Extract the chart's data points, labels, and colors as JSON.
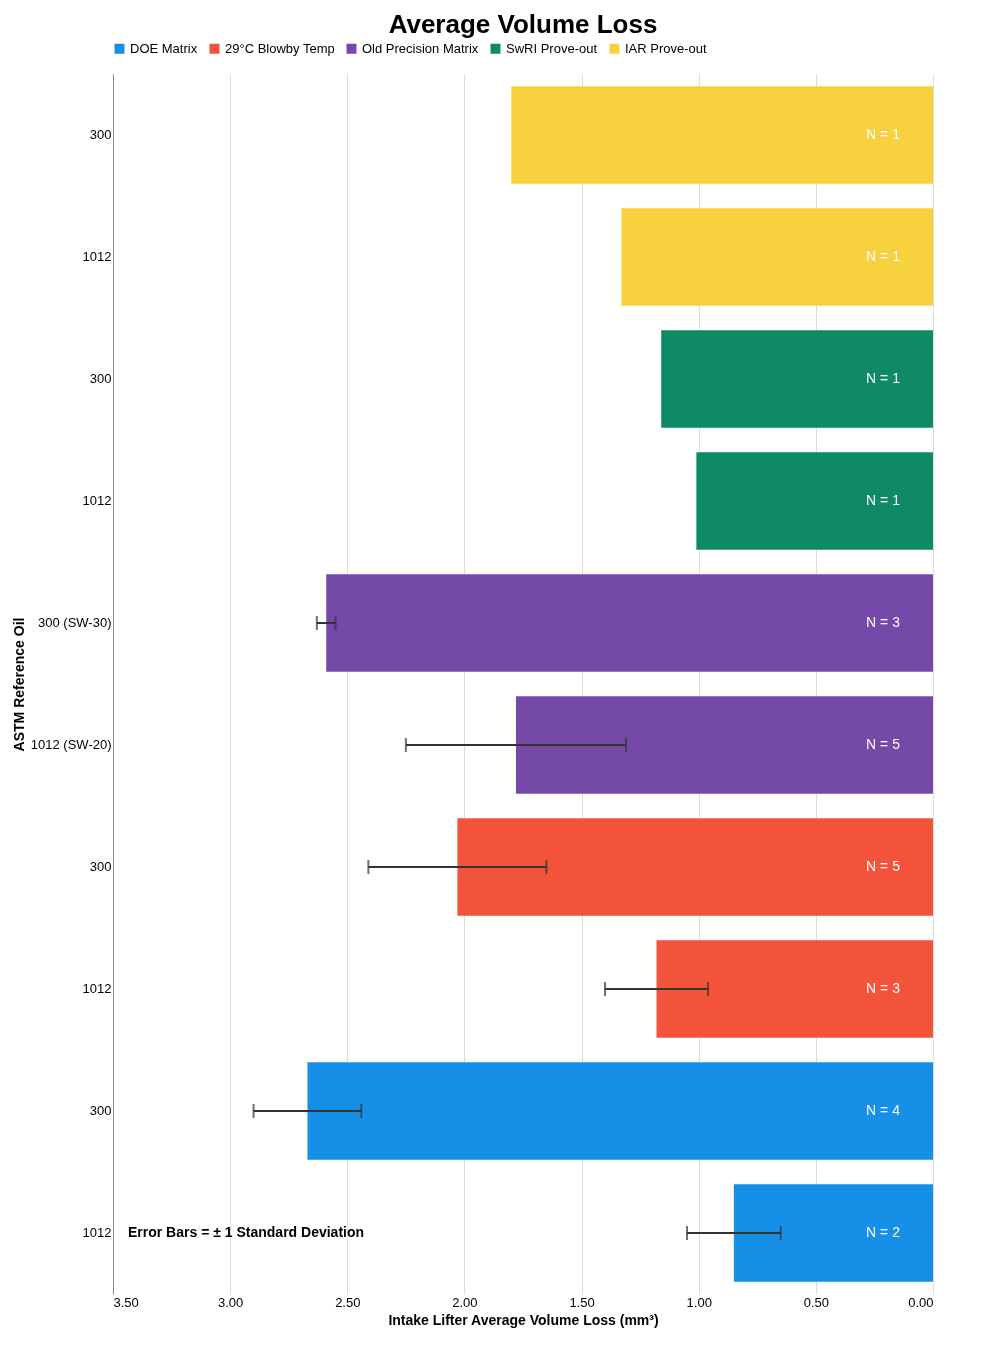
{
  "chart_data": {
    "type": "bar",
    "orientation": "horizontal",
    "title": "Average Volume Loss",
    "xlabel": "Intake Lifter Average Volume Loss (mm³)",
    "ylabel": "ASTM Reference Oil",
    "annotations": [
      "Error Bars = ± 1 Standard Deviation",
      "N = 1",
      "N = 1",
      "N = 1",
      "N = 1",
      "N = 3",
      "N = 5",
      "N = 5",
      "N = 3",
      "N = 4",
      "N = 2"
    ],
    "categories": [
      "300",
      "1012",
      "300",
      "1012",
      "300 (SW-30)",
      "1012 (SW-20)",
      "300",
      "1012",
      "300",
      "1012"
    ],
    "series": [
      {
        "name": "DOE Matrix",
        "color": "#1590e6",
        "values": [
          null,
          null,
          null,
          null,
          null,
          null,
          null,
          null,
          2.67,
          0.85
        ],
        "errors": [
          null,
          null,
          null,
          null,
          null,
          null,
          null,
          null,
          0.23,
          0.2
        ]
      },
      {
        "name": "29°C Blowby Temp",
        "color": "#f2533a",
        "values": [
          null,
          null,
          null,
          null,
          null,
          null,
          2.03,
          1.18,
          null,
          null
        ],
        "errors": [
          null,
          null,
          null,
          null,
          null,
          null,
          0.38,
          0.22,
          null,
          null
        ]
      },
      {
        "name": "Old Precision Matrix",
        "color": "#7549a8",
        "values": [
          null,
          null,
          null,
          null,
          2.59,
          1.78,
          null,
          null,
          null,
          null
        ],
        "errors": [
          null,
          null,
          null,
          null,
          0.04,
          0.47,
          null,
          null,
          null,
          null
        ]
      },
      {
        "name": "SwRI Prove-out",
        "color": "#0e8a66",
        "values": [
          null,
          null,
          1.16,
          1.01,
          null,
          null,
          null,
          null,
          null,
          null
        ]
      },
      {
        "name": "IAR Prove-out",
        "color": "#f7d23e",
        "values": [
          1.8,
          1.33,
          null,
          null,
          null,
          null,
          null,
          null,
          null,
          null
        ]
      }
    ],
    "xlim": [
      3.5,
      0
    ],
    "xticks": [
      {
        "value": 3.5,
        "label": "3.50"
      },
      {
        "value": 3.0,
        "label": "3.00"
      },
      {
        "value": 2.5,
        "label": "2.50"
      },
      {
        "value": 2.0,
        "label": "2.00"
      },
      {
        "value": 1.5,
        "label": "1.50"
      },
      {
        "value": 1.0,
        "label": "1.00"
      },
      {
        "value": 0.5,
        "label": "0.50"
      },
      {
        "value": 0,
        "label": "0.00"
      }
    ],
    "grid": "x",
    "legend": "top"
  }
}
